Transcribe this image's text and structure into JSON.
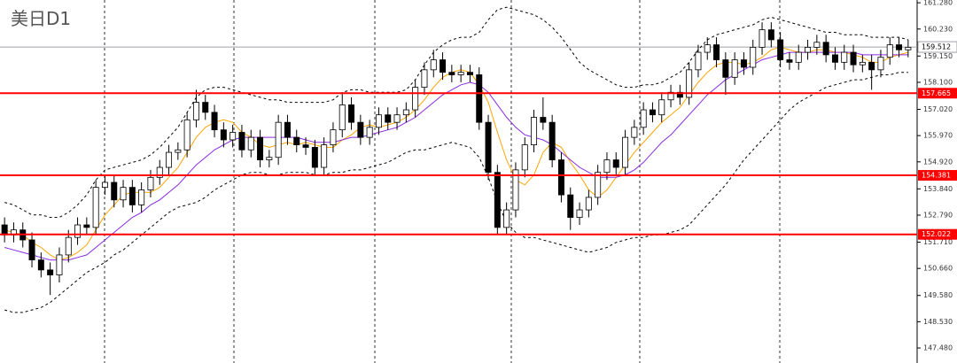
{
  "chart_data": {
    "type": "candlestick",
    "title": "美日D1",
    "open": [
      152.4,
      152.0,
      152.2,
      151.8,
      151.0,
      150.6,
      150.4,
      151.2,
      151.9,
      152.4,
      152.3,
      153.9,
      154.1,
      153.4,
      153.9,
      153.2,
      153.8,
      154.3,
      154.7,
      155.3,
      155.4,
      156.6,
      157.3,
      156.9,
      156.2,
      155.8,
      156.1,
      155.4,
      155.9,
      155.0,
      155.1,
      156.5,
      155.9,
      155.6,
      155.5,
      154.7,
      155.6,
      156.2,
      157.2,
      156.5,
      155.9,
      156.3,
      156.8,
      156.5,
      156.8,
      157.0,
      157.9,
      158.6,
      159.0,
      158.5,
      158.4,
      158.5,
      158.4,
      156.5,
      154.5,
      152.3,
      153.0,
      154.6,
      155.6,
      156.7,
      156.5,
      155.0,
      153.6,
      152.7,
      153.0,
      153.5,
      154.5,
      155.0,
      154.7,
      155.9,
      156.3,
      157.0,
      156.8,
      157.4,
      157.7,
      157.5,
      158.6,
      159.3,
      159.6,
      159.0,
      158.3,
      159.0,
      158.7,
      159.5,
      160.2,
      159.8,
      159.0,
      158.9,
      159.3,
      159.5,
      159.7,
      159.2,
      158.9,
      159.3,
      158.8,
      158.9,
      158.6,
      159.1,
      159.6,
      159.4
    ],
    "high": [
      152.7,
      152.5,
      152.5,
      152.1,
      151.3,
      150.9,
      151.5,
      152.2,
      152.7,
      152.7,
      154.2,
      154.4,
      154.4,
      154.2,
      154.2,
      154.1,
      154.6,
      155.0,
      155.6,
      155.7,
      156.9,
      157.8,
      157.6,
      157.2,
      156.5,
      156.4,
      156.4,
      156.2,
      156.2,
      155.4,
      156.8,
      156.8,
      156.2,
      155.9,
      155.8,
      155.9,
      156.5,
      157.7,
      157.5,
      156.8,
      156.6,
      157.1,
      157.1,
      157.1,
      157.3,
      158.2,
      158.9,
      159.4,
      159.3,
      158.8,
      158.8,
      158.8,
      158.7,
      156.8,
      154.8,
      153.3,
      154.9,
      155.9,
      157.0,
      157.5,
      156.8,
      155.3,
      153.9,
      153.3,
      153.8,
      154.8,
      155.3,
      155.3,
      156.2,
      156.6,
      157.3,
      157.3,
      157.7,
      158.0,
      158.0,
      158.9,
      159.6,
      159.9,
      159.9,
      159.3,
      159.3,
      159.3,
      159.8,
      160.5,
      160.5,
      160.1,
      159.3,
      159.6,
      159.8,
      160.0,
      160.0,
      159.5,
      159.6,
      159.6,
      159.2,
      159.2,
      159.4,
      159.9,
      159.9,
      159.8
    ],
    "low": [
      151.7,
      151.7,
      151.5,
      150.7,
      150.3,
      149.6,
      150.1,
      150.9,
      151.6,
      152.0,
      152.0,
      153.6,
      153.1,
      153.1,
      152.9,
      152.9,
      153.5,
      154.0,
      154.4,
      155.0,
      155.1,
      156.3,
      156.6,
      155.9,
      155.5,
      155.5,
      155.1,
      155.1,
      154.7,
      154.7,
      154.8,
      155.6,
      155.3,
      155.2,
      154.4,
      154.4,
      155.3,
      155.9,
      156.2,
      155.6,
      155.6,
      156.0,
      156.2,
      156.2,
      156.5,
      156.7,
      157.6,
      158.3,
      158.2,
      158.1,
      158.1,
      158.1,
      156.2,
      154.2,
      152.0,
      152.0,
      152.7,
      154.3,
      155.3,
      156.2,
      154.7,
      153.3,
      152.2,
      152.4,
      152.7,
      153.2,
      154.2,
      154.4,
      154.4,
      155.6,
      156.0,
      156.5,
      156.5,
      157.1,
      157.2,
      157.2,
      158.3,
      159.0,
      158.7,
      157.6,
      158.0,
      158.4,
      158.4,
      159.2,
      159.5,
      158.7,
      158.6,
      158.6,
      159.0,
      159.2,
      158.9,
      158.6,
      158.6,
      158.5,
      158.5,
      157.8,
      158.3,
      158.8,
      159.1,
      159.1
    ],
    "close": [
      152.0,
      152.2,
      151.8,
      151.0,
      150.6,
      150.4,
      151.2,
      151.9,
      152.4,
      152.3,
      153.9,
      154.1,
      153.4,
      153.9,
      153.2,
      153.8,
      154.3,
      154.7,
      155.3,
      155.4,
      156.6,
      157.3,
      156.9,
      156.2,
      155.8,
      156.1,
      155.4,
      155.9,
      155.0,
      155.1,
      156.5,
      155.9,
      155.6,
      155.5,
      154.7,
      155.6,
      156.2,
      157.2,
      156.5,
      155.9,
      156.3,
      156.8,
      156.5,
      156.8,
      157.0,
      157.9,
      158.6,
      159.0,
      158.5,
      158.4,
      158.5,
      158.4,
      156.5,
      154.5,
      152.3,
      153.0,
      154.6,
      155.6,
      156.7,
      156.5,
      155.0,
      153.6,
      152.7,
      153.0,
      153.5,
      154.5,
      155.0,
      154.7,
      155.9,
      156.3,
      157.0,
      156.8,
      157.4,
      157.7,
      157.5,
      158.6,
      159.3,
      159.6,
      159.0,
      158.3,
      159.0,
      158.7,
      159.5,
      160.2,
      159.8,
      159.0,
      158.9,
      159.3,
      159.5,
      159.7,
      159.2,
      158.9,
      159.3,
      158.8,
      158.9,
      158.6,
      159.1,
      159.6,
      159.4,
      159.5
    ],
    "up_color": "#ffffff",
    "down_color": "#000000",
    "lines": [
      {
        "color": "#000000",
        "dash": true,
        "values": [
          153.3,
          153.2,
          153.0,
          152.8,
          152.8,
          152.7,
          152.7,
          152.9,
          153.2,
          153.6,
          154.2,
          154.6,
          154.7,
          154.8,
          154.9,
          155.0,
          155.2,
          155.5,
          155.9,
          156.3,
          156.9,
          157.5,
          157.8,
          157.9,
          157.9,
          157.8,
          157.7,
          157.6,
          157.5,
          157.4,
          157.4,
          157.3,
          157.3,
          157.3,
          157.3,
          157.3,
          157.4,
          157.7,
          157.8,
          157.8,
          157.7,
          157.7,
          157.7,
          157.7,
          157.8,
          158.2,
          158.8,
          159.3,
          159.6,
          159.8,
          159.9,
          159.9,
          160.1,
          160.6,
          161.0,
          161.1,
          161.0,
          160.9,
          160.8,
          160.6,
          160.3,
          159.9,
          159.4,
          158.9,
          158.6,
          158.4,
          158.2,
          158.0,
          157.9,
          157.9,
          158.0,
          158.0,
          158.1,
          158.3,
          158.5,
          158.9,
          159.4,
          159.8,
          160.0,
          160.1,
          160.2,
          160.3,
          160.4,
          160.6,
          160.7,
          160.6,
          160.5,
          160.4,
          160.3,
          160.2,
          160.1,
          160.1,
          160.0,
          160.0,
          160.0,
          159.9,
          159.9,
          159.9,
          159.9,
          159.8
        ]
      },
      {
        "color": "#000000",
        "dash": true,
        "values": [
          149.0,
          148.9,
          148.9,
          149.0,
          149.1,
          149.3,
          149.6,
          149.9,
          150.2,
          150.5,
          150.7,
          150.9,
          151.2,
          151.4,
          151.7,
          152.0,
          152.3,
          152.6,
          152.9,
          153.1,
          153.2,
          153.3,
          153.5,
          153.8,
          154.0,
          154.2,
          154.4,
          154.5,
          154.5,
          154.4,
          154.4,
          154.5,
          154.5,
          154.5,
          154.4,
          154.4,
          154.5,
          154.5,
          154.6,
          154.6,
          154.7,
          154.8,
          154.9,
          155.1,
          155.3,
          155.4,
          155.4,
          155.5,
          155.6,
          155.7,
          155.6,
          155.5,
          155.1,
          154.3,
          153.3,
          152.5,
          152.1,
          151.9,
          151.9,
          151.8,
          151.7,
          151.6,
          151.5,
          151.4,
          151.3,
          151.4,
          151.5,
          151.7,
          151.8,
          151.9,
          151.9,
          152.0,
          152.0,
          152.1,
          152.2,
          152.4,
          152.8,
          153.2,
          153.6,
          154.0,
          154.5,
          155.0,
          155.4,
          155.8,
          156.2,
          156.6,
          157.0,
          157.3,
          157.5,
          157.7,
          157.9,
          158.0,
          158.1,
          158.2,
          158.2,
          158.3,
          158.4,
          158.4,
          158.5,
          158.5
        ]
      },
      {
        "color": "#ffa500",
        "dash": false,
        "values": [
          152.2,
          152.1,
          152.0,
          151.7,
          151.5,
          151.2,
          151.0,
          151.1,
          151.3,
          151.6,
          152.2,
          152.8,
          153.2,
          153.6,
          153.7,
          153.7,
          153.7,
          153.9,
          154.3,
          154.7,
          155.3,
          155.9,
          156.3,
          156.5,
          156.6,
          156.5,
          156.1,
          155.9,
          155.6,
          155.5,
          155.6,
          155.7,
          155.6,
          155.7,
          155.6,
          155.5,
          155.5,
          155.8,
          156.0,
          156.3,
          156.4,
          156.3,
          156.4,
          156.5,
          156.7,
          157.0,
          157.4,
          157.9,
          158.3,
          158.5,
          158.6,
          158.5,
          158.0,
          157.3,
          156.1,
          155.0,
          154.2,
          154.0,
          154.4,
          155.3,
          155.7,
          155.5,
          154.9,
          154.4,
          153.8,
          153.5,
          153.8,
          154.3,
          154.8,
          155.3,
          155.7,
          156.1,
          156.5,
          156.8,
          157.1,
          157.6,
          158.1,
          158.5,
          158.8,
          158.9,
          158.9,
          158.8,
          158.9,
          159.1,
          159.4,
          159.5,
          159.4,
          159.3,
          159.3,
          159.4,
          159.4,
          159.3,
          159.3,
          159.2,
          159.1,
          158.9,
          158.9,
          159.1,
          159.2,
          159.3
        ]
      },
      {
        "color": "#8a2be2",
        "dash": false,
        "values": [
          151.5,
          151.4,
          151.3,
          151.2,
          151.1,
          151.0,
          151.0,
          151.0,
          151.1,
          151.2,
          151.5,
          151.8,
          152.1,
          152.4,
          152.7,
          152.9,
          153.2,
          153.4,
          153.7,
          154.0,
          154.4,
          154.8,
          155.1,
          155.4,
          155.6,
          155.8,
          155.9,
          155.9,
          155.9,
          155.9,
          155.9,
          155.9,
          155.9,
          155.8,
          155.7,
          155.7,
          155.7,
          155.8,
          155.9,
          155.9,
          156.0,
          156.1,
          156.2,
          156.3,
          156.5,
          156.7,
          157.0,
          157.3,
          157.6,
          157.8,
          158.0,
          158.1,
          158.0,
          157.7,
          157.2,
          156.7,
          156.3,
          156.0,
          155.9,
          155.8,
          155.6,
          155.3,
          155.0,
          154.7,
          154.5,
          154.3,
          154.3,
          154.3,
          154.4,
          154.6,
          154.9,
          155.3,
          155.7,
          156.0,
          156.4,
          156.8,
          157.2,
          157.6,
          157.9,
          158.2,
          158.4,
          158.6,
          158.8,
          159.0,
          159.1,
          159.2,
          159.3,
          159.3,
          159.3,
          159.3,
          159.3,
          159.3,
          159.3,
          159.3,
          159.2,
          159.2,
          159.2,
          159.2,
          159.2,
          159.2
        ]
      }
    ],
    "levels": [
      {
        "value": 157.665,
        "label": "157.665",
        "color": "#ff0000"
      },
      {
        "value": 154.381,
        "label": "154.381",
        "color": "#ff0000"
      },
      {
        "value": 152.022,
        "label": "152.022",
        "color": "#ff0000"
      }
    ],
    "last_price": {
      "value": 159.512,
      "label": "159.512",
      "color": "#a0a0a8"
    },
    "ylim": [
      146.88,
      161.39
    ],
    "yticks": [
      {
        "value": 161.28,
        "label": "161.280"
      },
      {
        "value": 160.23,
        "label": "160.230"
      },
      {
        "value": 159.15,
        "label": "159.150"
      },
      {
        "value": 158.1,
        "label": "158.100"
      },
      {
        "value": 157.02,
        "label": "157.020"
      },
      {
        "value": 155.97,
        "label": "155.970"
      },
      {
        "value": 154.92,
        "label": "154.920"
      },
      {
        "value": 153.84,
        "label": "153.840"
      },
      {
        "value": 152.79,
        "label": "152.790"
      },
      {
        "value": 151.71,
        "label": "151.710"
      },
      {
        "value": 150.66,
        "label": "150.660"
      },
      {
        "value": 149.58,
        "label": "149.580"
      },
      {
        "value": 148.53,
        "label": "148.530"
      },
      {
        "value": 147.48,
        "label": "147.480"
      }
    ]
  }
}
